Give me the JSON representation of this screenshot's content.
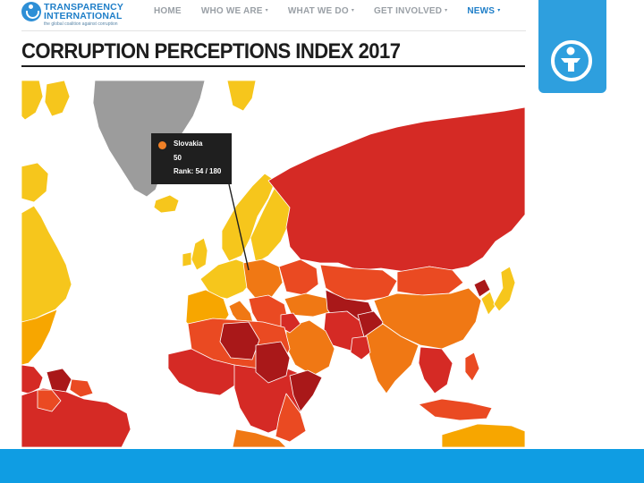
{
  "header": {
    "logo_line1": "TRANSPARENCY",
    "logo_line2": "INTERNATIONAL",
    "logo_tagline": "the global coalition against corruption",
    "nav": [
      {
        "label": "HOME",
        "has_dropdown": false,
        "active": false
      },
      {
        "label": "WHO WE ARE",
        "has_dropdown": true,
        "active": false
      },
      {
        "label": "WHAT WE DO",
        "has_dropdown": true,
        "active": false
      },
      {
        "label": "GET INVOLVED",
        "has_dropdown": true,
        "active": false
      },
      {
        "label": "NEWS",
        "has_dropdown": true,
        "active": true
      }
    ],
    "dropdown_glyph": "▾"
  },
  "page_title": "CORRUPTION PERCEPTIONS INDEX 2017",
  "emblem": {
    "icon": "person-circle-icon"
  },
  "map": {
    "tooltip": {
      "country": "Slovakia",
      "score": "50",
      "rank": "Rank: 54 / 180"
    },
    "colors": {
      "very_clean": "#f6c61c",
      "clean": "#f7a600",
      "mid": "#f07814",
      "low": "#ea4a22",
      "very_low": "#d52a25",
      "highly_corrupt": "#a91819",
      "no_data": "#9c9c9c",
      "border": "#ffffff"
    }
  },
  "colors": {
    "brand_blue": "#1e7ec8",
    "emblem_blue": "#2e9fde",
    "band_blue": "#0f9de3",
    "nav_grey": "#9aa0a6",
    "tooltip_bg": "#1f1f1f",
    "tooltip_dot": "#f08026"
  }
}
